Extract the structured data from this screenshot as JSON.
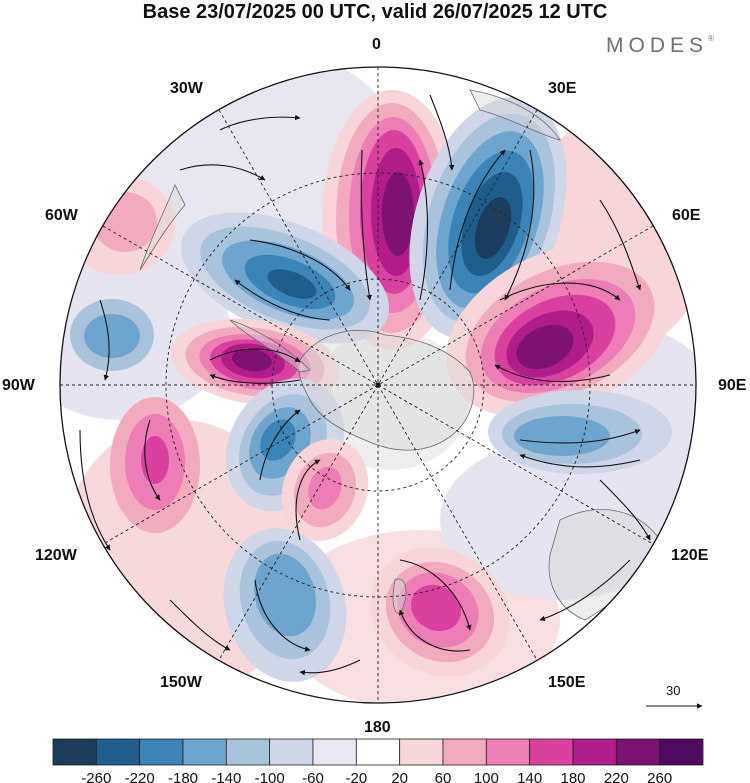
{
  "title": "Base 23/07/2025 00 UTC, valid 26/07/2025 12 UTC",
  "brand": "MODES",
  "brand_mark": "®",
  "longitude_labels": {
    "lon_0": "0",
    "lon_30e": "30E",
    "lon_60e": "60E",
    "lon_90e": "90E",
    "lon_120e": "120E",
    "lon_150e": "150E",
    "lon_180": "180",
    "lon_150w": "150W",
    "lon_120w": "120W",
    "lon_90w": "90W",
    "lon_60w": "60W",
    "lon_30w": "30W"
  },
  "reference_vector_label": "30",
  "colorbar": {
    "tick_labels": [
      "-260",
      "-220",
      "-180",
      "-140",
      "-100",
      "-60",
      "-20",
      "20",
      "60",
      "100",
      "140",
      "180",
      "220",
      "260"
    ],
    "colors": [
      "#1b3c5c",
      "#1f5e8c",
      "#3a84b8",
      "#6ea5cf",
      "#a9c3dc",
      "#cfd6e8",
      "#eae8f2",
      "#ffffff",
      "#f7d5d8",
      "#f2aabf",
      "#ec7db5",
      "#d9409f",
      "#b01c88",
      "#7d1272",
      "#4d0a5e"
    ]
  },
  "anomaly_centers": [
    {
      "type": "high",
      "value": 270,
      "region": "near 10E"
    },
    {
      "type": "low",
      "value": -230,
      "region": "near 35E"
    },
    {
      "type": "high",
      "value": 270,
      "region": "near 75E"
    },
    {
      "type": "high",
      "value": 260,
      "region": "near 85W"
    },
    {
      "type": "low",
      "value": -180,
      "region": "near 60W"
    },
    {
      "type": "low",
      "value": -150,
      "region": "near 105E"
    },
    {
      "type": "high",
      "value": 200,
      "region": "near 160E"
    },
    {
      "type": "low",
      "value": -140,
      "region": "near 150W"
    },
    {
      "type": "high",
      "value": 140,
      "region": "near 110W"
    },
    {
      "type": "high",
      "value": 100,
      "region": "near 150W inner"
    }
  ]
}
